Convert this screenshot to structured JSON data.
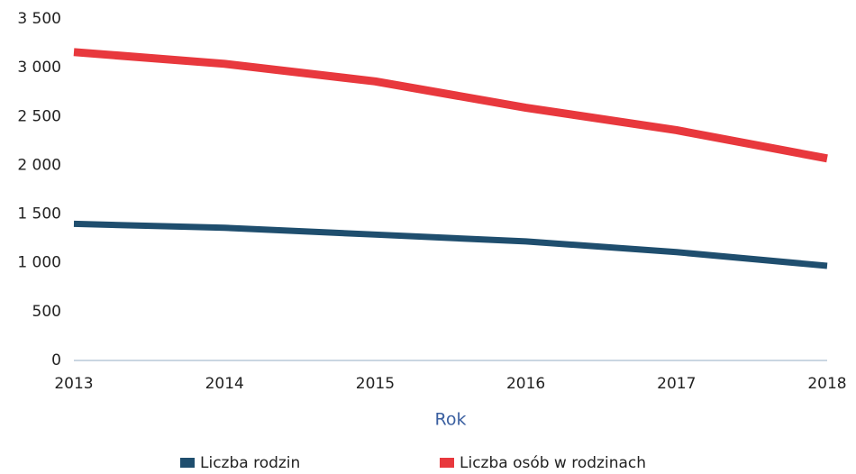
{
  "chart_data": {
    "type": "line",
    "categories": [
      "2013",
      "2014",
      "2015",
      "2016",
      "2017",
      "2018"
    ],
    "x_label": "Rok",
    "series": [
      {
        "name": "Liczba rodzin",
        "color": "#1f4e6e",
        "values": [
          1400,
          1360,
          1290,
          1220,
          1110,
          970
        ]
      },
      {
        "name": "Liczba osób w rodzinach",
        "color": "#e8383d",
        "values": [
          3160,
          3040,
          2860,
          2590,
          2360,
          2070
        ]
      }
    ],
    "ylim": [
      0,
      3500
    ],
    "yticks": [
      0,
      500,
      {
        "value": 1000,
        "label": "1 000"
      },
      {
        "value": 1500,
        "label": "1 500"
      },
      {
        "value": 2000,
        "label": "2 000"
      },
      {
        "value": 2500,
        "label": "2 500"
      },
      {
        "value": 3000,
        "label": "3 000"
      },
      {
        "value": 3500,
        "label": "3 500"
      }
    ],
    "grid": false,
    "legend": "bottom"
  }
}
